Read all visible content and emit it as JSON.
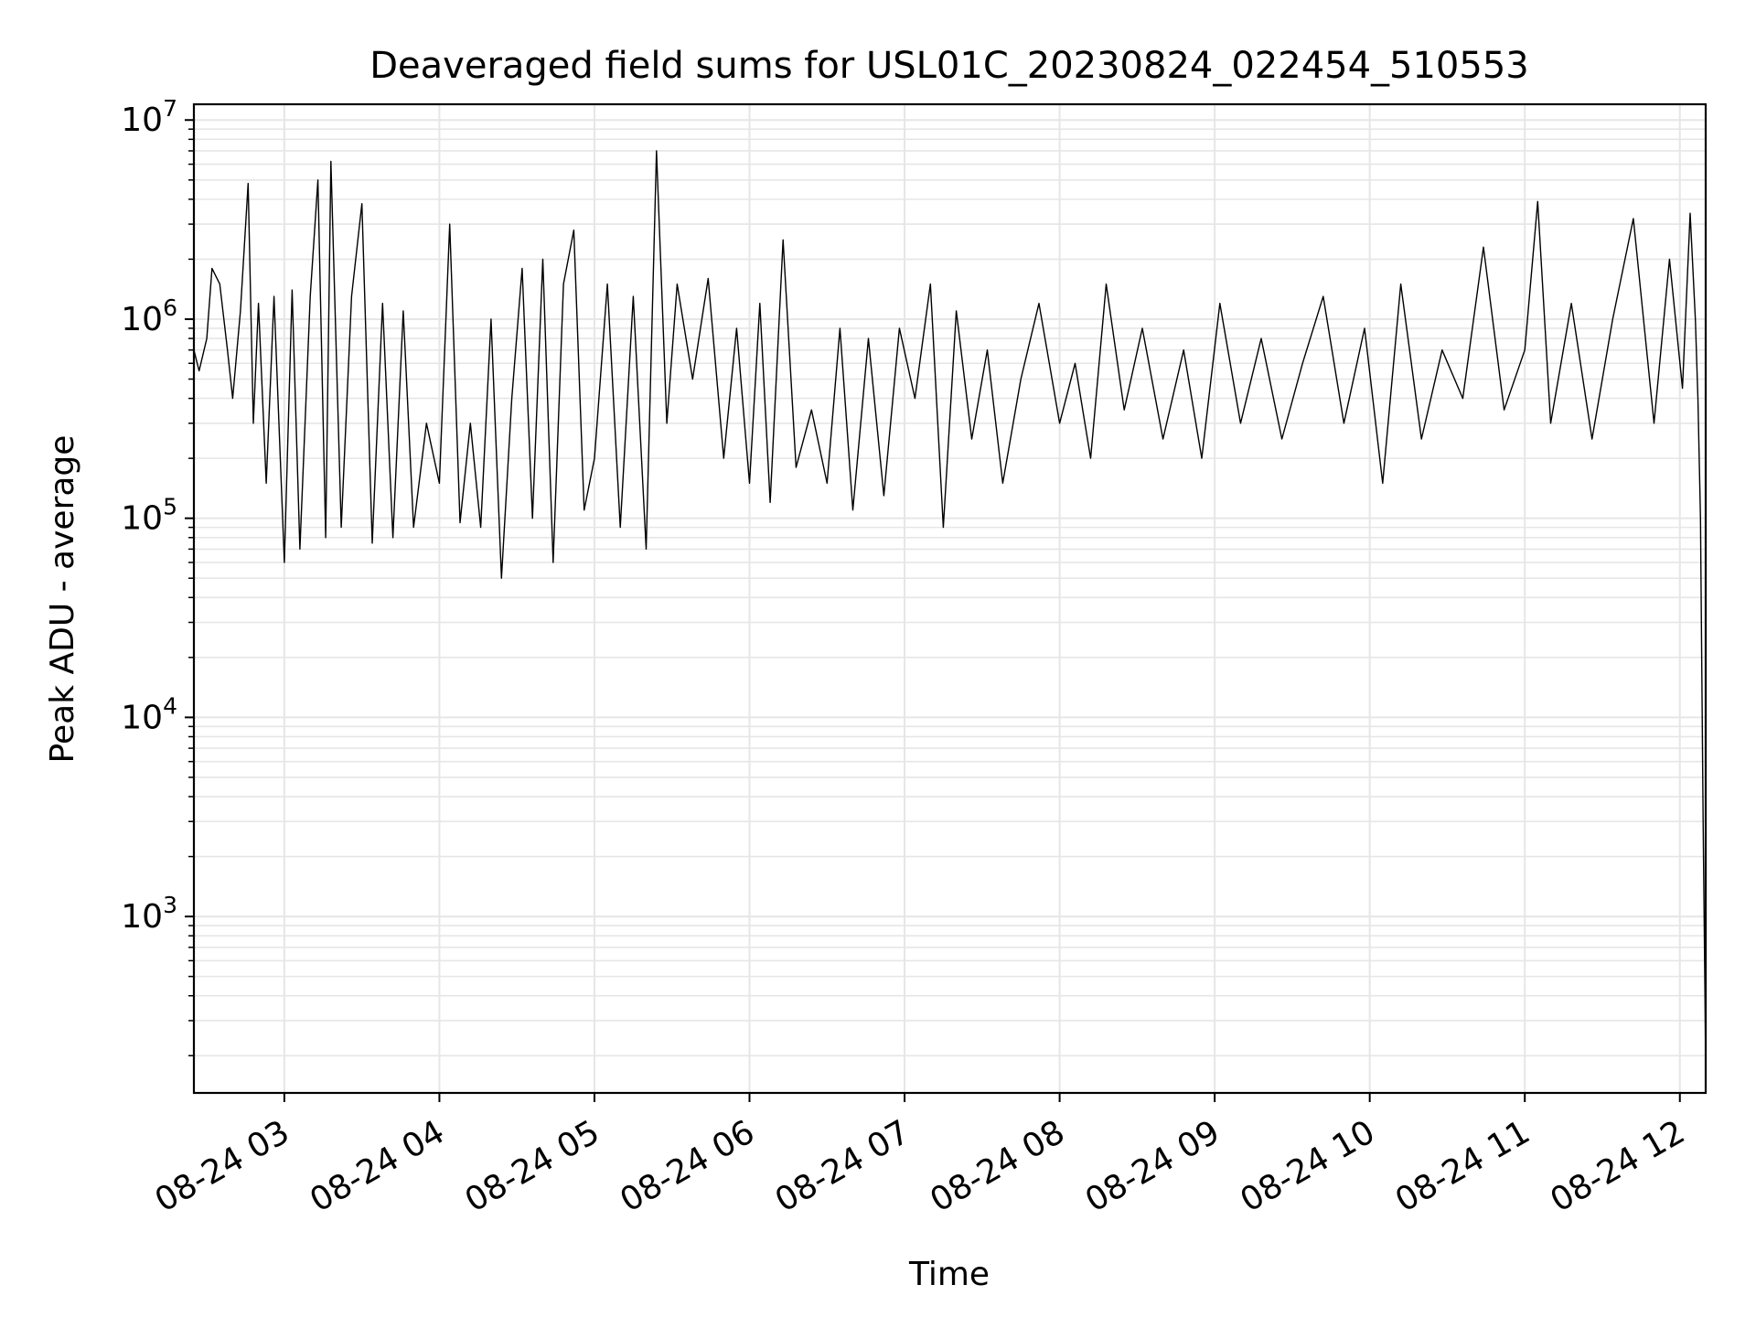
{
  "chart_data": {
    "type": "line",
    "title": "Deaveraged field sums for USL01C_20230824_022454_510553",
    "xlabel": "Time",
    "ylabel": "Peak ADU - average",
    "yscale": "log",
    "grid": true,
    "line_color": "#000000",
    "grid_color": "#e6e6e6",
    "xlim": [
      "2023-08-24 02:25",
      "2023-08-24 12:10"
    ],
    "ylim": [
      130,
      12000000
    ],
    "xticks": [
      {
        "t": "2023-08-24 03:00",
        "label": "08-24 03"
      },
      {
        "t": "2023-08-24 04:00",
        "label": "08-24 04"
      },
      {
        "t": "2023-08-24 05:00",
        "label": "08-24 05"
      },
      {
        "t": "2023-08-24 06:00",
        "label": "08-24 06"
      },
      {
        "t": "2023-08-24 07:00",
        "label": "08-24 07"
      },
      {
        "t": "2023-08-24 08:00",
        "label": "08-24 08"
      },
      {
        "t": "2023-08-24 09:00",
        "label": "08-24 09"
      },
      {
        "t": "2023-08-24 10:00",
        "label": "08-24 10"
      },
      {
        "t": "2023-08-24 11:00",
        "label": "08-24 11"
      },
      {
        "t": "2023-08-24 12:00",
        "label": "08-24 12"
      }
    ],
    "yticks": [
      {
        "value": 1000,
        "base": "10",
        "exp": "3"
      },
      {
        "value": 10000,
        "base": "10",
        "exp": "4"
      },
      {
        "value": 100000,
        "base": "10",
        "exp": "5"
      },
      {
        "value": 1000000,
        "base": "10",
        "exp": "6"
      },
      {
        "value": 10000000,
        "base": "10",
        "exp": "7"
      }
    ],
    "series": [
      {
        "points": [
          [
            "2023-08-24 02:25",
            700000
          ],
          [
            "2023-08-24 02:27",
            550000
          ],
          [
            "2023-08-24 02:30",
            800000
          ],
          [
            "2023-08-24 02:32",
            1800000
          ],
          [
            "2023-08-24 02:35",
            1500000
          ],
          [
            "2023-08-24 02:38",
            700000
          ],
          [
            "2023-08-24 02:40",
            400000
          ],
          [
            "2023-08-24 02:43",
            1100000
          ],
          [
            "2023-08-24 02:46",
            4800000
          ],
          [
            "2023-08-24 02:48",
            300000
          ],
          [
            "2023-08-24 02:50",
            1200000
          ],
          [
            "2023-08-24 02:53",
            150000
          ],
          [
            "2023-08-24 02:56",
            1300000
          ],
          [
            "2023-08-24 03:00",
            60000
          ],
          [
            "2023-08-24 03:03",
            1400000
          ],
          [
            "2023-08-24 03:06",
            70000
          ],
          [
            "2023-08-24 03:10",
            1300000
          ],
          [
            "2023-08-24 03:13",
            5000000
          ],
          [
            "2023-08-24 03:16",
            80000
          ],
          [
            "2023-08-24 03:18",
            6200000
          ],
          [
            "2023-08-24 03:22",
            90000
          ],
          [
            "2023-08-24 03:26",
            1300000
          ],
          [
            "2023-08-24 03:30",
            3800000
          ],
          [
            "2023-08-24 03:34",
            75000
          ],
          [
            "2023-08-24 03:38",
            1200000
          ],
          [
            "2023-08-24 03:42",
            80000
          ],
          [
            "2023-08-24 03:46",
            1100000
          ],
          [
            "2023-08-24 03:50",
            90000
          ],
          [
            "2023-08-24 03:55",
            300000
          ],
          [
            "2023-08-24 04:00",
            150000
          ],
          [
            "2023-08-24 04:04",
            3000000
          ],
          [
            "2023-08-24 04:08",
            95000
          ],
          [
            "2023-08-24 04:12",
            300000
          ],
          [
            "2023-08-24 04:16",
            90000
          ],
          [
            "2023-08-24 04:20",
            1000000
          ],
          [
            "2023-08-24 04:24",
            50000
          ],
          [
            "2023-08-24 04:28",
            400000
          ],
          [
            "2023-08-24 04:32",
            1800000
          ],
          [
            "2023-08-24 04:36",
            100000
          ],
          [
            "2023-08-24 04:40",
            2000000
          ],
          [
            "2023-08-24 04:44",
            60000
          ],
          [
            "2023-08-24 04:48",
            1500000
          ],
          [
            "2023-08-24 04:52",
            2800000
          ],
          [
            "2023-08-24 04:56",
            110000
          ],
          [
            "2023-08-24 05:00",
            200000
          ],
          [
            "2023-08-24 05:05",
            1500000
          ],
          [
            "2023-08-24 05:10",
            90000
          ],
          [
            "2023-08-24 05:15",
            1300000
          ],
          [
            "2023-08-24 05:20",
            70000
          ],
          [
            "2023-08-24 05:24",
            7000000
          ],
          [
            "2023-08-24 05:28",
            300000
          ],
          [
            "2023-08-24 05:32",
            1500000
          ],
          [
            "2023-08-24 05:38",
            500000
          ],
          [
            "2023-08-24 05:44",
            1600000
          ],
          [
            "2023-08-24 05:50",
            200000
          ],
          [
            "2023-08-24 05:55",
            900000
          ],
          [
            "2023-08-24 06:00",
            150000
          ],
          [
            "2023-08-24 06:04",
            1200000
          ],
          [
            "2023-08-24 06:08",
            120000
          ],
          [
            "2023-08-24 06:13",
            2500000
          ],
          [
            "2023-08-24 06:18",
            180000
          ],
          [
            "2023-08-24 06:24",
            350000
          ],
          [
            "2023-08-24 06:30",
            150000
          ],
          [
            "2023-08-24 06:35",
            900000
          ],
          [
            "2023-08-24 06:40",
            110000
          ],
          [
            "2023-08-24 06:46",
            800000
          ],
          [
            "2023-08-24 06:52",
            130000
          ],
          [
            "2023-08-24 06:58",
            900000
          ],
          [
            "2023-08-24 07:04",
            400000
          ],
          [
            "2023-08-24 07:10",
            1500000
          ],
          [
            "2023-08-24 07:15",
            90000
          ],
          [
            "2023-08-24 07:20",
            1100000
          ],
          [
            "2023-08-24 07:26",
            250000
          ],
          [
            "2023-08-24 07:32",
            700000
          ],
          [
            "2023-08-24 07:38",
            150000
          ],
          [
            "2023-08-24 07:45",
            500000
          ],
          [
            "2023-08-24 07:52",
            1200000
          ],
          [
            "2023-08-24 08:00",
            300000
          ],
          [
            "2023-08-24 08:06",
            600000
          ],
          [
            "2023-08-24 08:12",
            200000
          ],
          [
            "2023-08-24 08:18",
            1500000
          ],
          [
            "2023-08-24 08:25",
            350000
          ],
          [
            "2023-08-24 08:32",
            900000
          ],
          [
            "2023-08-24 08:40",
            250000
          ],
          [
            "2023-08-24 08:48",
            700000
          ],
          [
            "2023-08-24 08:55",
            200000
          ],
          [
            "2023-08-24 09:02",
            1200000
          ],
          [
            "2023-08-24 09:10",
            300000
          ],
          [
            "2023-08-24 09:18",
            800000
          ],
          [
            "2023-08-24 09:26",
            250000
          ],
          [
            "2023-08-24 09:34",
            600000
          ],
          [
            "2023-08-24 09:42",
            1300000
          ],
          [
            "2023-08-24 09:50",
            300000
          ],
          [
            "2023-08-24 09:58",
            900000
          ],
          [
            "2023-08-24 10:05",
            150000
          ],
          [
            "2023-08-24 10:12",
            1500000
          ],
          [
            "2023-08-24 10:20",
            250000
          ],
          [
            "2023-08-24 10:28",
            700000
          ],
          [
            "2023-08-24 10:36",
            400000
          ],
          [
            "2023-08-24 10:44",
            2300000
          ],
          [
            "2023-08-24 10:52",
            350000
          ],
          [
            "2023-08-24 11:00",
            700000
          ],
          [
            "2023-08-24 11:05",
            3900000
          ],
          [
            "2023-08-24 11:10",
            300000
          ],
          [
            "2023-08-24 11:18",
            1200000
          ],
          [
            "2023-08-24 11:26",
            250000
          ],
          [
            "2023-08-24 11:34",
            1000000
          ],
          [
            "2023-08-24 11:42",
            3200000
          ],
          [
            "2023-08-24 11:50",
            300000
          ],
          [
            "2023-08-24 11:56",
            2000000
          ],
          [
            "2023-08-24 12:01",
            450000
          ],
          [
            "2023-08-24 12:04",
            3400000
          ],
          [
            "2023-08-24 12:06",
            1000000
          ],
          [
            "2023-08-24 12:07",
            400000
          ],
          [
            "2023-08-24 12:08",
            100000
          ],
          [
            "2023-08-24 12:09",
            3000
          ],
          [
            "2023-08-24 12:10",
            180
          ]
        ]
      }
    ]
  }
}
